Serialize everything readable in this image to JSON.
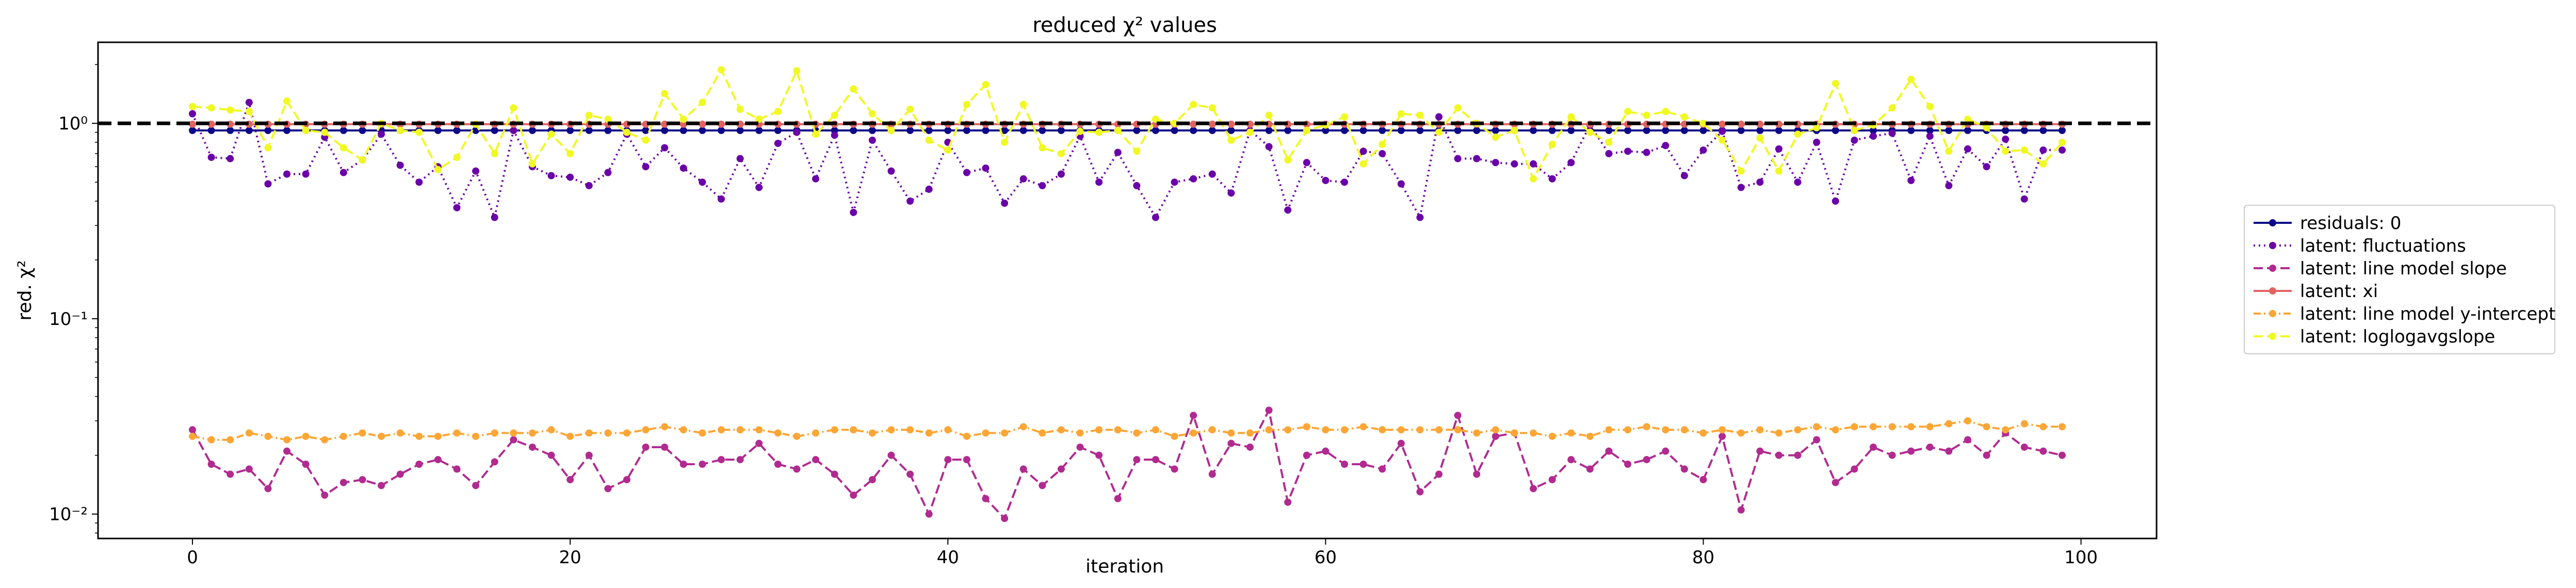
{
  "chart_data": {
    "type": "line",
    "title": "reduced χ² values",
    "xlabel": "iteration",
    "ylabel": "red. χ²",
    "xlim": [
      -5,
      104
    ],
    "ylim": [
      0.0075,
      2.6
    ],
    "yscale": "log",
    "x_ticks": [
      0,
      20,
      40,
      60,
      80,
      100
    ],
    "x_tick_labels": [
      "0",
      "20",
      "40",
      "60",
      "80",
      "100"
    ],
    "y_ticks": [
      0.01,
      0.1,
      1
    ],
    "y_tick_labels": [
      "10⁻²",
      "10⁻¹",
      "10⁰"
    ],
    "reference_line": {
      "y": 1.0,
      "style": "dashed",
      "color": "#000000"
    },
    "grid": false,
    "legend_position": "right",
    "x": [
      0,
      1,
      2,
      3,
      4,
      5,
      6,
      7,
      8,
      9,
      10,
      11,
      12,
      13,
      14,
      15,
      16,
      17,
      18,
      19,
      20,
      21,
      22,
      23,
      24,
      25,
      26,
      27,
      28,
      29,
      30,
      31,
      32,
      33,
      34,
      35,
      36,
      37,
      38,
      39,
      40,
      41,
      42,
      43,
      44,
      45,
      46,
      47,
      48,
      49,
      50,
      51,
      52,
      53,
      54,
      55,
      56,
      57,
      58,
      59,
      60,
      61,
      62,
      63,
      64,
      65,
      66,
      67,
      68,
      69,
      70,
      71,
      72,
      73,
      74,
      75,
      76,
      77,
      78,
      79,
      80,
      81,
      82,
      83,
      84,
      85,
      86,
      87,
      88,
      89,
      90,
      91,
      92,
      93,
      94,
      95,
      96,
      97,
      98,
      99
    ],
    "series": [
      {
        "name": "residuals: 0",
        "color": "#0d0887",
        "dash": "solid",
        "values": [
          0.92,
          0.92,
          0.92,
          0.92,
          0.92,
          0.92,
          0.92,
          0.92,
          0.92,
          0.92,
          0.92,
          0.92,
          0.92,
          0.92,
          0.92,
          0.92,
          0.92,
          0.92,
          0.92,
          0.92,
          0.92,
          0.92,
          0.92,
          0.92,
          0.92,
          0.92,
          0.92,
          0.92,
          0.92,
          0.92,
          0.92,
          0.92,
          0.92,
          0.92,
          0.92,
          0.92,
          0.92,
          0.92,
          0.92,
          0.92,
          0.92,
          0.92,
          0.92,
          0.92,
          0.92,
          0.92,
          0.92,
          0.92,
          0.92,
          0.92,
          0.92,
          0.92,
          0.92,
          0.92,
          0.92,
          0.92,
          0.92,
          0.92,
          0.92,
          0.92,
          0.92,
          0.92,
          0.92,
          0.92,
          0.92,
          0.92,
          0.92,
          0.92,
          0.92,
          0.92,
          0.92,
          0.92,
          0.92,
          0.92,
          0.92,
          0.92,
          0.92,
          0.92,
          0.92,
          0.92,
          0.92,
          0.92,
          0.92,
          0.92,
          0.92,
          0.92,
          0.92,
          0.92,
          0.92,
          0.92,
          0.92,
          0.92,
          0.92,
          0.92,
          0.92,
          0.92,
          0.92,
          0.92,
          0.92,
          0.92
        ]
      },
      {
        "name": "latent: fluctuations",
        "color": "#6a00a8",
        "dash": "dotted",
        "values": [
          1.12,
          0.67,
          0.66,
          1.28,
          0.49,
          0.55,
          0.55,
          0.85,
          0.56,
          0.65,
          0.88,
          0.61,
          0.5,
          0.6,
          0.37,
          0.57,
          0.33,
          0.92,
          0.6,
          0.54,
          0.53,
          0.48,
          0.56,
          0.88,
          0.6,
          0.75,
          0.59,
          0.5,
          0.41,
          0.66,
          0.47,
          0.79,
          0.9,
          0.52,
          0.87,
          0.35,
          0.82,
          0.57,
          0.4,
          0.46,
          0.8,
          0.56,
          0.59,
          0.39,
          0.52,
          0.48,
          0.55,
          0.86,
          0.5,
          0.71,
          0.48,
          0.33,
          0.5,
          0.52,
          0.55,
          0.44,
          0.92,
          0.76,
          0.36,
          0.63,
          0.51,
          0.5,
          0.72,
          0.7,
          0.49,
          0.33,
          1.08,
          0.66,
          0.66,
          0.63,
          0.62,
          0.62,
          0.52,
          0.63,
          0.98,
          0.7,
          0.72,
          0.71,
          0.77,
          0.54,
          0.73,
          0.91,
          0.47,
          0.5,
          0.74,
          0.5,
          0.8,
          0.4,
          0.82,
          0.86,
          0.89,
          0.51,
          0.86,
          0.48,
          0.74,
          0.6,
          0.83,
          0.41,
          0.73,
          0.73
        ]
      },
      {
        "name": "latent: line model slope",
        "color": "#b12a90",
        "dash": "dashed",
        "values": [
          0.027,
          0.018,
          0.016,
          0.017,
          0.0135,
          0.021,
          0.018,
          0.0125,
          0.0145,
          0.015,
          0.014,
          0.016,
          0.018,
          0.019,
          0.017,
          0.014,
          0.0185,
          0.024,
          0.022,
          0.02,
          0.015,
          0.02,
          0.0135,
          0.015,
          0.022,
          0.022,
          0.018,
          0.018,
          0.019,
          0.019,
          0.023,
          0.018,
          0.017,
          0.019,
          0.016,
          0.0125,
          0.015,
          0.02,
          0.016,
          0.01,
          0.019,
          0.019,
          0.012,
          0.0095,
          0.017,
          0.014,
          0.017,
          0.022,
          0.02,
          0.012,
          0.019,
          0.019,
          0.017,
          0.032,
          0.016,
          0.023,
          0.022,
          0.034,
          0.0115,
          0.02,
          0.021,
          0.018,
          0.018,
          0.017,
          0.023,
          0.013,
          0.016,
          0.032,
          0.016,
          0.025,
          0.026,
          0.0135,
          0.015,
          0.019,
          0.017,
          0.021,
          0.018,
          0.019,
          0.021,
          0.017,
          0.015,
          0.025,
          0.0105,
          0.021,
          0.02,
          0.02,
          0.024,
          0.0145,
          0.017,
          0.022,
          0.02,
          0.021,
          0.022,
          0.021,
          0.024,
          0.02,
          0.026,
          0.022,
          0.021,
          0.02
        ]
      },
      {
        "name": "latent: xi",
        "color": "#e16462",
        "dash": "solid",
        "values": [
          0.99,
          0.99,
          0.99,
          0.99,
          0.99,
          0.99,
          0.99,
          0.99,
          0.99,
          0.99,
          0.99,
          0.99,
          0.99,
          0.99,
          0.99,
          0.99,
          0.99,
          0.99,
          0.99,
          0.99,
          0.99,
          0.99,
          0.99,
          0.99,
          0.99,
          0.99,
          0.99,
          0.99,
          0.99,
          0.99,
          0.99,
          0.99,
          0.99,
          0.99,
          0.99,
          0.99,
          0.99,
          0.99,
          0.99,
          0.99,
          0.99,
          0.99,
          0.99,
          0.99,
          0.99,
          0.99,
          0.99,
          0.99,
          0.99,
          0.99,
          0.99,
          0.99,
          0.99,
          0.99,
          0.99,
          0.99,
          0.99,
          0.99,
          0.99,
          0.99,
          0.99,
          0.99,
          0.99,
          0.99,
          0.99,
          0.99,
          0.99,
          0.99,
          0.99,
          0.99,
          0.99,
          0.99,
          0.99,
          0.99,
          0.99,
          0.99,
          0.99,
          0.99,
          0.99,
          0.99,
          0.99,
          0.99,
          0.99,
          0.99,
          0.99,
          0.99,
          0.99,
          0.99,
          0.99,
          0.99,
          0.99,
          0.99,
          0.99,
          0.99,
          0.99,
          0.99,
          0.99,
          0.99,
          0.99,
          0.99
        ]
      },
      {
        "name": "latent: line model y-intercept",
        "color": "#fca636",
        "dash": "dashdot",
        "values": [
          0.025,
          0.024,
          0.024,
          0.026,
          0.025,
          0.024,
          0.025,
          0.024,
          0.025,
          0.026,
          0.025,
          0.026,
          0.025,
          0.025,
          0.026,
          0.025,
          0.026,
          0.026,
          0.026,
          0.027,
          0.025,
          0.026,
          0.026,
          0.026,
          0.027,
          0.028,
          0.027,
          0.026,
          0.027,
          0.027,
          0.027,
          0.026,
          0.025,
          0.026,
          0.027,
          0.027,
          0.026,
          0.027,
          0.027,
          0.026,
          0.027,
          0.025,
          0.026,
          0.026,
          0.028,
          0.026,
          0.027,
          0.026,
          0.027,
          0.027,
          0.026,
          0.027,
          0.025,
          0.026,
          0.027,
          0.026,
          0.026,
          0.027,
          0.027,
          0.028,
          0.027,
          0.027,
          0.028,
          0.027,
          0.027,
          0.027,
          0.027,
          0.027,
          0.026,
          0.027,
          0.026,
          0.026,
          0.025,
          0.026,
          0.025,
          0.027,
          0.027,
          0.028,
          0.027,
          0.027,
          0.026,
          0.027,
          0.026,
          0.027,
          0.026,
          0.027,
          0.028,
          0.027,
          0.028,
          0.028,
          0.028,
          0.028,
          0.028,
          0.029,
          0.03,
          0.028,
          0.027,
          0.029,
          0.028,
          0.028
        ]
      },
      {
        "name": "latent: loglogavgslope",
        "color": "#f0f921",
        "dash": "dashed",
        "values": [
          1.22,
          1.2,
          1.17,
          1.15,
          0.75,
          1.3,
          0.92,
          0.9,
          0.75,
          0.65,
          1.0,
          0.92,
          0.9,
          0.58,
          0.67,
          0.99,
          0.7,
          1.2,
          0.62,
          0.88,
          0.7,
          1.1,
          1.05,
          0.9,
          0.82,
          1.42,
          1.05,
          1.28,
          1.88,
          1.18,
          1.05,
          1.15,
          1.86,
          0.88,
          1.1,
          1.5,
          1.12,
          0.92,
          1.18,
          0.82,
          0.73,
          1.25,
          1.58,
          0.8,
          1.25,
          0.75,
          0.7,
          0.91,
          0.9,
          0.92,
          0.72,
          1.05,
          1.0,
          1.25,
          1.2,
          0.82,
          0.9,
          1.1,
          0.65,
          0.92,
          0.98,
          1.08,
          0.62,
          0.78,
          1.12,
          1.1,
          0.9,
          1.2,
          1.0,
          0.85,
          0.92,
          0.52,
          0.78,
          1.08,
          0.9,
          0.8,
          1.15,
          1.1,
          1.15,
          1.08,
          1.0,
          0.82,
          0.57,
          0.84,
          0.57,
          0.88,
          0.95,
          1.6,
          0.92,
          0.98,
          1.2,
          1.68,
          1.22,
          0.72,
          1.05,
          0.95,
          0.72,
          0.73,
          0.62,
          0.8
        ]
      }
    ]
  }
}
